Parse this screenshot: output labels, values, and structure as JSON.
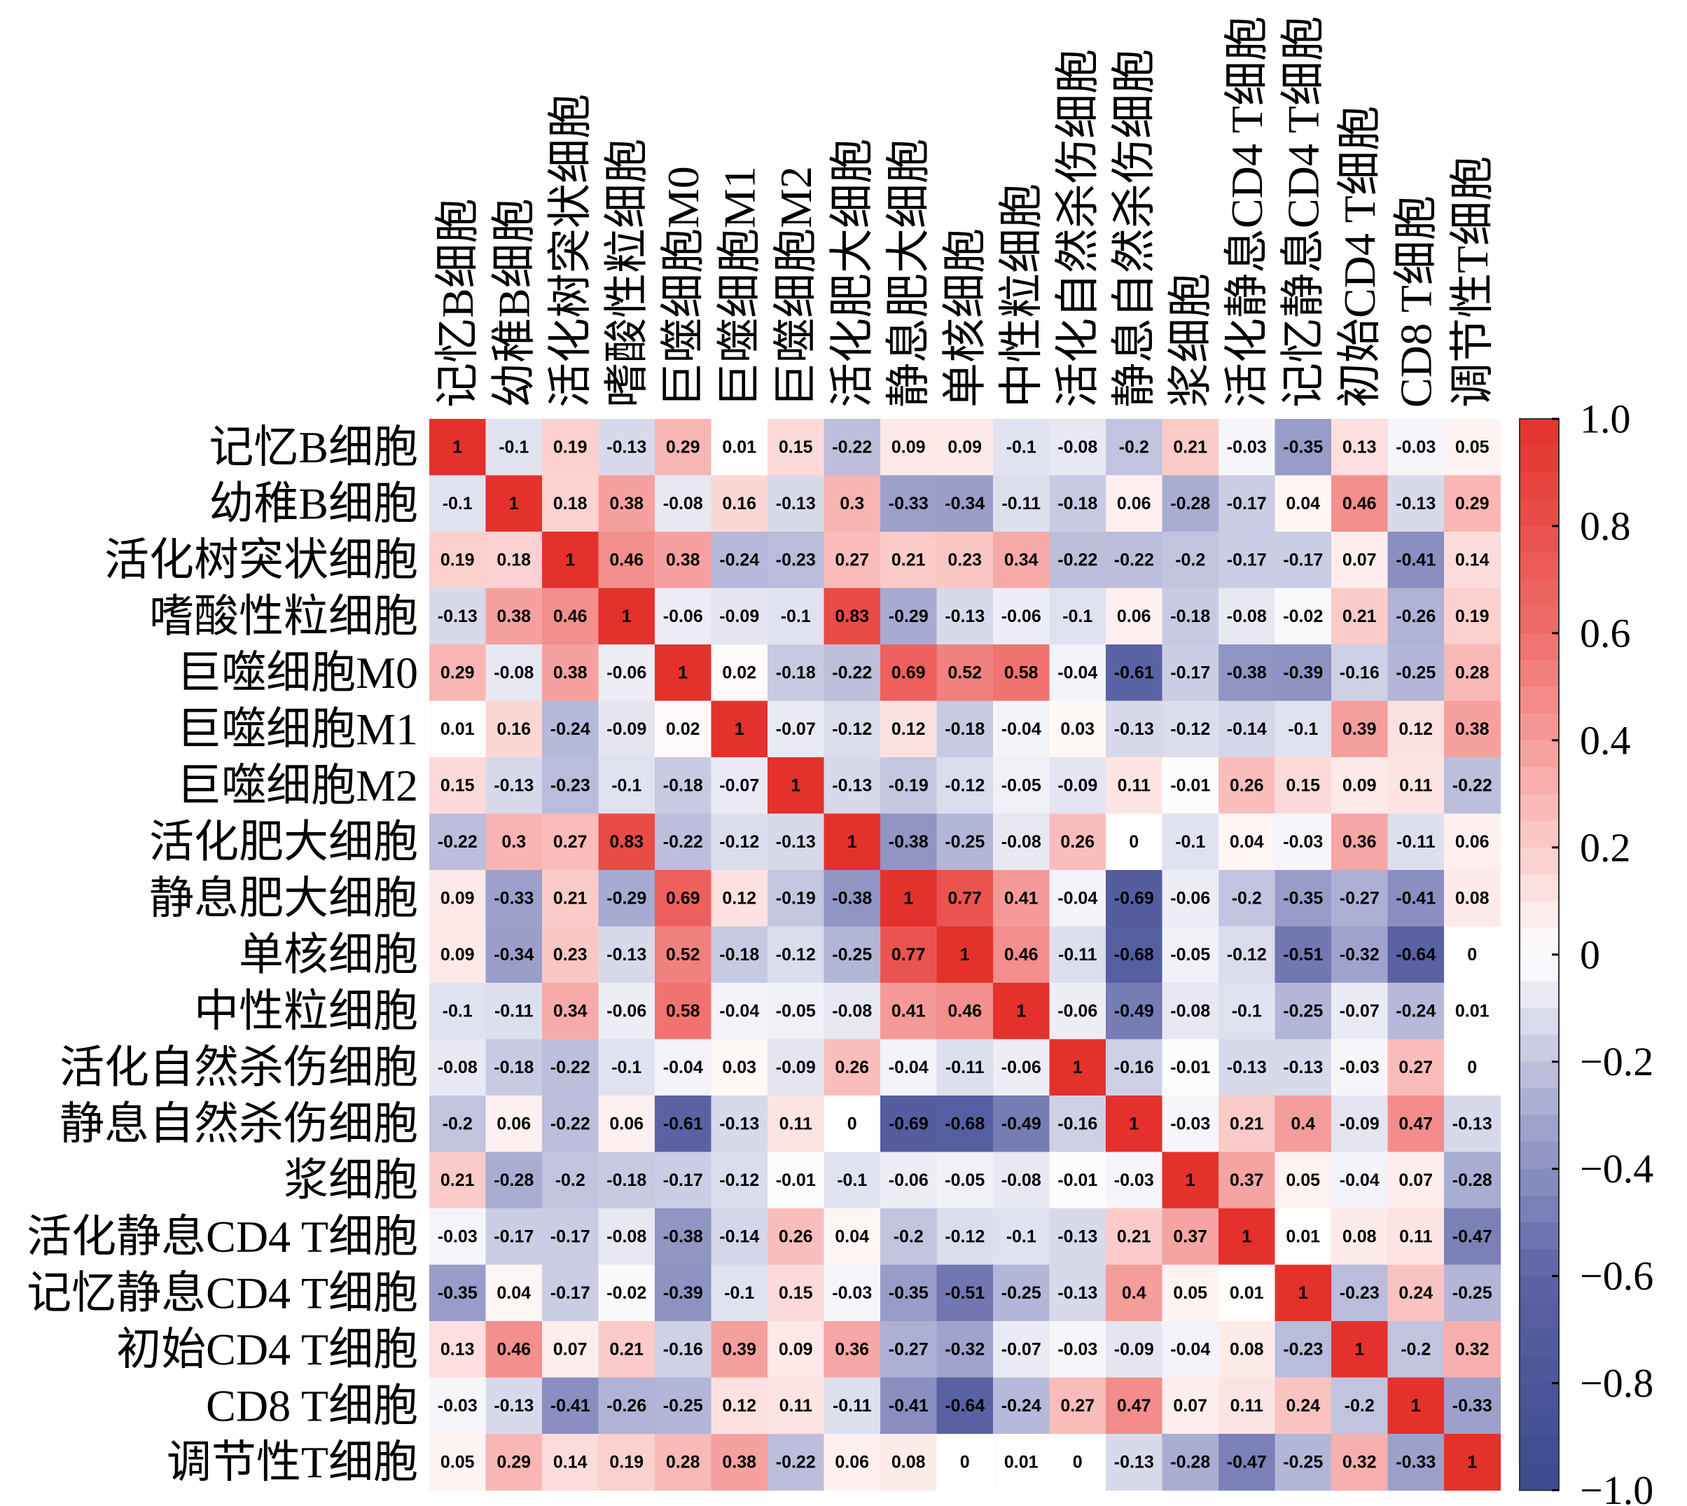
{
  "chart_data": {
    "type": "heatmap",
    "title": "",
    "xlabel": "",
    "ylabel": "",
    "labels": [
      "记忆B细胞",
      "幼稚B细胞",
      "活化树突状细胞",
      "嗜酸性粒细胞",
      "巨噬细胞M0",
      "巨噬细胞M1",
      "巨噬细胞M2",
      "活化肥大细胞",
      "静息肥大细胞",
      "单核细胞",
      "中性粒细胞",
      "活化自然杀伤细胞",
      "静息自然杀伤细胞",
      "浆细胞",
      "活化静息CD4 T细胞",
      "记忆静息CD4 T细胞",
      "初始CD4 T细胞",
      "CD8 T细胞",
      "调节性T细胞"
    ],
    "matrix": [
      [
        1,
        -0.1,
        0.19,
        -0.13,
        0.29,
        0.01,
        0.15,
        -0.22,
        0.09,
        0.09,
        -0.1,
        -0.08,
        -0.2,
        0.21,
        -0.03,
        -0.35,
        0.13,
        -0.03,
        0.05
      ],
      [
        -0.1,
        1,
        0.18,
        0.38,
        -0.08,
        0.16,
        -0.13,
        0.3,
        -0.33,
        -0.34,
        -0.11,
        -0.18,
        0.06,
        -0.28,
        -0.17,
        0.04,
        0.46,
        -0.13,
        0.29
      ],
      [
        0.19,
        0.18,
        1,
        0.46,
        0.38,
        -0.24,
        -0.23,
        0.27,
        0.21,
        0.23,
        0.34,
        -0.22,
        -0.22,
        -0.2,
        -0.17,
        -0.17,
        0.07,
        -0.41,
        0.14
      ],
      [
        -0.13,
        0.38,
        0.46,
        1,
        -0.06,
        -0.09,
        -0.1,
        0.83,
        -0.29,
        -0.13,
        -0.06,
        -0.1,
        0.06,
        -0.18,
        -0.08,
        -0.02,
        0.21,
        -0.26,
        0.19
      ],
      [
        0.29,
        -0.08,
        0.38,
        -0.06,
        1,
        0.02,
        -0.18,
        -0.22,
        0.69,
        0.52,
        0.58,
        -0.04,
        -0.61,
        -0.17,
        -0.38,
        -0.39,
        -0.16,
        -0.25,
        0.28
      ],
      [
        0.01,
        0.16,
        -0.24,
        -0.09,
        0.02,
        1,
        -0.07,
        -0.12,
        0.12,
        -0.18,
        -0.04,
        0.03,
        -0.13,
        -0.12,
        -0.14,
        -0.1,
        0.39,
        0.12,
        0.38
      ],
      [
        0.15,
        -0.13,
        -0.23,
        -0.1,
        -0.18,
        -0.07,
        1,
        -0.13,
        -0.19,
        -0.12,
        -0.05,
        -0.09,
        0.11,
        -0.01,
        0.26,
        0.15,
        0.09,
        0.11,
        -0.22
      ],
      [
        -0.22,
        0.3,
        0.27,
        0.83,
        -0.22,
        -0.12,
        -0.13,
        1,
        -0.38,
        -0.25,
        -0.08,
        0.26,
        0,
        -0.1,
        0.04,
        -0.03,
        0.36,
        -0.11,
        0.06
      ],
      [
        0.09,
        -0.33,
        0.21,
        -0.29,
        0.69,
        0.12,
        -0.19,
        -0.38,
        1,
        0.77,
        0.41,
        -0.04,
        -0.69,
        -0.06,
        -0.2,
        -0.35,
        -0.27,
        -0.41,
        0.08
      ],
      [
        0.09,
        -0.34,
        0.23,
        -0.13,
        0.52,
        -0.18,
        -0.12,
        -0.25,
        0.77,
        1,
        0.46,
        -0.11,
        -0.68,
        -0.05,
        -0.12,
        -0.51,
        -0.32,
        -0.64,
        0
      ],
      [
        -0.1,
        -0.11,
        0.34,
        -0.06,
        0.58,
        -0.04,
        -0.05,
        -0.08,
        0.41,
        0.46,
        1,
        -0.06,
        -0.49,
        -0.08,
        -0.1,
        -0.25,
        -0.07,
        -0.24,
        0.01
      ],
      [
        -0.08,
        -0.18,
        -0.22,
        -0.1,
        -0.04,
        0.03,
        -0.09,
        0.26,
        -0.04,
        -0.11,
        -0.06,
        1,
        -0.16,
        -0.01,
        -0.13,
        -0.13,
        -0.03,
        0.27,
        0
      ],
      [
        -0.2,
        0.06,
        -0.22,
        0.06,
        -0.61,
        -0.13,
        0.11,
        0,
        -0.69,
        -0.68,
        -0.49,
        -0.16,
        1,
        -0.03,
        0.21,
        0.4,
        -0.09,
        0.47,
        -0.13
      ],
      [
        0.21,
        -0.28,
        -0.2,
        -0.18,
        -0.17,
        -0.12,
        -0.01,
        -0.1,
        -0.06,
        -0.05,
        -0.08,
        -0.01,
        -0.03,
        1,
        0.37,
        0.05,
        -0.04,
        0.07,
        -0.28
      ],
      [
        -0.03,
        -0.17,
        -0.17,
        -0.08,
        -0.38,
        -0.14,
        0.26,
        0.04,
        -0.2,
        -0.12,
        -0.1,
        -0.13,
        0.21,
        0.37,
        1,
        0.01,
        0.08,
        0.11,
        -0.47
      ],
      [
        -0.35,
        0.04,
        -0.17,
        -0.02,
        -0.39,
        -0.1,
        0.15,
        -0.03,
        -0.35,
        -0.51,
        -0.25,
        -0.13,
        0.4,
        0.05,
        0.01,
        1,
        -0.23,
        0.24,
        -0.25
      ],
      [
        0.13,
        0.46,
        0.07,
        0.21,
        -0.16,
        0.39,
        0.09,
        0.36,
        -0.27,
        -0.32,
        -0.07,
        -0.03,
        -0.09,
        -0.04,
        0.08,
        -0.23,
        1,
        -0.2,
        0.32
      ],
      [
        -0.03,
        -0.13,
        -0.41,
        -0.26,
        -0.25,
        0.12,
        0.11,
        -0.11,
        -0.41,
        -0.64,
        -0.24,
        0.27,
        0.47,
        0.07,
        0.11,
        0.24,
        -0.2,
        1,
        -0.33
      ],
      [
        0.05,
        0.29,
        0.14,
        0.19,
        0.28,
        0.38,
        -0.22,
        0.06,
        0.08,
        0,
        0.01,
        0,
        -0.13,
        -0.28,
        -0.47,
        -0.25,
        0.32,
        -0.33,
        1
      ]
    ],
    "value_range": [
      -1,
      1
    ],
    "color_stops": [
      {
        "value": -1.0,
        "color": "#3B4A8E"
      },
      {
        "value": -0.6,
        "color": "#5C63A5"
      },
      {
        "value": -0.3,
        "color": "#A4A7CF"
      },
      {
        "value": 0.0,
        "color": "#FFFFFF"
      },
      {
        "value": 0.3,
        "color": "#F8B4B2"
      },
      {
        "value": 0.6,
        "color": "#EF6E6B"
      },
      {
        "value": 1.0,
        "color": "#E4312C"
      }
    ],
    "colorbar": {
      "placement": "right",
      "ticks": [
        1.0,
        0.8,
        0.6,
        0.4,
        0.2,
        0,
        -0.2,
        -0.4,
        -0.6,
        -0.8,
        -1.0
      ],
      "tick_labels": [
        "1.0",
        "0.8",
        "0.6",
        "0.4",
        "0.2",
        "0",
        "−0.2",
        "−0.4",
        "−0.6",
        "−0.8",
        "−1.0"
      ]
    }
  }
}
